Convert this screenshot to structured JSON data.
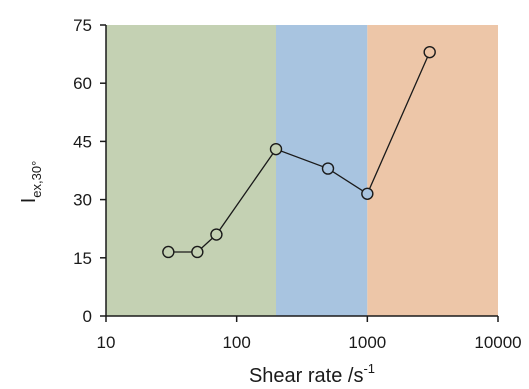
{
  "chart_data": {
    "type": "scatter",
    "title": "",
    "xlabel": "Shear rate /s",
    "xlabel_sup": "-1",
    "ylabel_main": "I",
    "ylabel_sub": "ex,30°",
    "xscale": "log",
    "xlim": [
      10,
      10000
    ],
    "ylim": [
      0,
      75
    ],
    "grid": false,
    "x_ticks": [
      10,
      100,
      1000,
      10000
    ],
    "x_tick_labels": [
      "10",
      "100",
      "1000",
      "10000"
    ],
    "y_ticks": [
      0,
      15,
      30,
      45,
      60,
      75
    ],
    "y_tick_labels": [
      "0",
      "15",
      "30",
      "45",
      "60",
      "75"
    ],
    "regions": [
      {
        "from": 10,
        "to": 200,
        "color": "#c4d1b3"
      },
      {
        "from": 200,
        "to": 1000,
        "color": "#a8c4e0"
      },
      {
        "from": 1000,
        "to": 10000,
        "color": "#edc6a8"
      }
    ],
    "series": [
      {
        "x": [
          30,
          50,
          70,
          200,
          500,
          1000,
          3000
        ],
        "y": [
          16.5,
          16.5,
          21,
          43,
          38,
          31.5,
          68
        ],
        "marker_fills": [
          "#c4d1b3",
          "#c4d1b3",
          "#c4d1b3",
          "#c4d1b3",
          "#a8c4e0",
          "#a8c4e0",
          "#edc6a8"
        ],
        "line_color": "#1a1a1a"
      }
    ]
  }
}
